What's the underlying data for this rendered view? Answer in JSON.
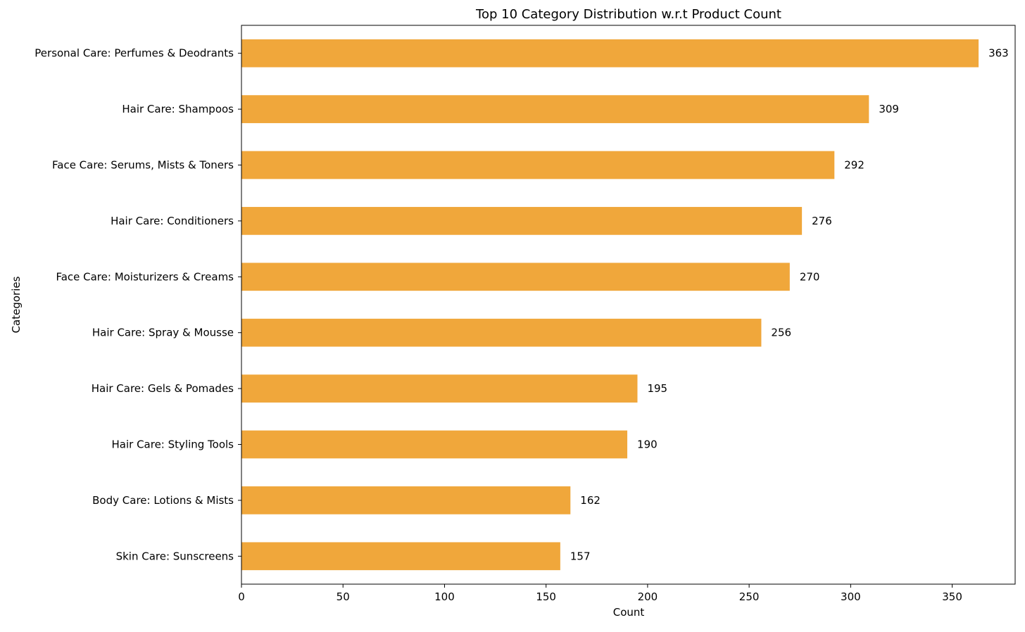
{
  "chart_data": {
    "type": "bar",
    "orientation": "horizontal",
    "title": "Top 10 Category Distribution w.r.t Product Count",
    "xlabel": "Count",
    "ylabel": "Categories",
    "categories": [
      "Personal Care: Perfumes & Deodrants",
      "Hair Care: Shampoos",
      "Face Care: Serums, Mists & Toners",
      "Hair Care: Conditioners",
      "Face Care: Moisturizers & Creams ",
      "Hair Care: Spray & Mousse",
      "Hair Care: Gels & Pomades",
      "Hair Care: Styling Tools",
      "Body Care: Lotions & Mists",
      "Skin Care: Sunscreens"
    ],
    "values": [
      363,
      309,
      292,
      276,
      270,
      256,
      195,
      190,
      162,
      157
    ],
    "data_labels": [
      "363",
      "309",
      "292",
      "276",
      "270",
      "256",
      "195",
      "190",
      "162",
      "157"
    ],
    "xlim": [
      0,
      381
    ],
    "xticks": [
      0,
      50,
      100,
      150,
      200,
      250,
      300,
      350
    ],
    "xtick_labels": [
      "0",
      "50",
      "100",
      "150",
      "200",
      "250",
      "300",
      "350"
    ],
    "grid": false,
    "legend": "none",
    "bar_color": "#f0a73b"
  }
}
